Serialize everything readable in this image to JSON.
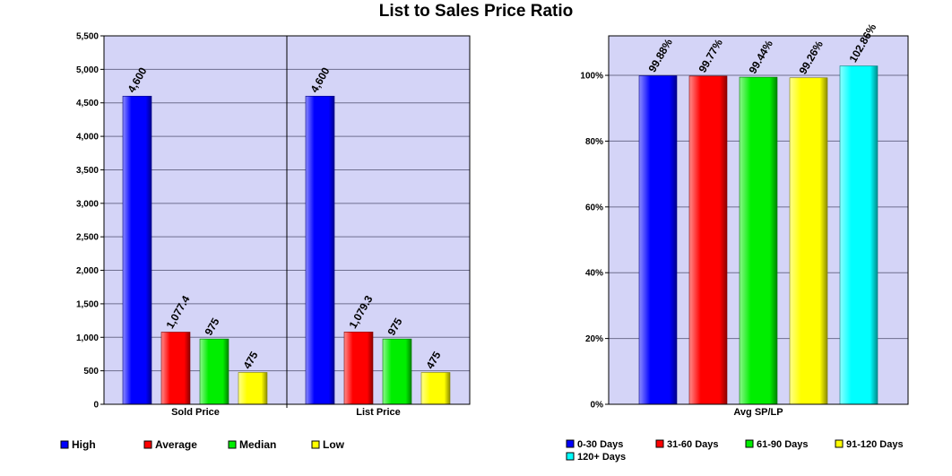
{
  "title": "List to Sales Price Ratio",
  "chart_data": [
    {
      "type": "bar",
      "categories": [
        "Sold Price",
        "List Price"
      ],
      "series": [
        {
          "name": "High",
          "values": [
            4600,
            4600
          ],
          "labels": [
            "4,600",
            "4,600"
          ],
          "color": "#0000ff"
        },
        {
          "name": "Average",
          "values": [
            1077.4,
            1079.3
          ],
          "labels": [
            "1,077.4",
            "1,079.3"
          ],
          "color": "#ff0000"
        },
        {
          "name": "Median",
          "values": [
            975,
            975
          ],
          "labels": [
            "975",
            "975"
          ],
          "color": "#00ee00"
        },
        {
          "name": "Low",
          "values": [
            475,
            475
          ],
          "labels": [
            "475",
            "475"
          ],
          "color": "#ffff00"
        }
      ],
      "ylim": [
        0,
        5500
      ],
      "yticks": [
        0,
        500,
        1000,
        1500,
        2000,
        2500,
        3000,
        3500,
        4000,
        4500,
        5000,
        5500
      ],
      "ytick_labels": [
        "0",
        "500",
        "1,000",
        "1,500",
        "2,000",
        "2,500",
        "3,000",
        "3,500",
        "4,000",
        "4,500",
        "5,000",
        "5,500"
      ],
      "grid": true,
      "legend_position": "bottom"
    },
    {
      "type": "bar",
      "categories": [
        "Avg SP/LP"
      ],
      "series": [
        {
          "name": "0-30 Days",
          "values": [
            99.88
          ],
          "labels": [
            "99.88%"
          ],
          "color": "#0000ff"
        },
        {
          "name": "31-60 Days",
          "values": [
            99.77
          ],
          "labels": [
            "99.77%"
          ],
          "color": "#ff0000"
        },
        {
          "name": "61-90 Days",
          "values": [
            99.44
          ],
          "labels": [
            "99.44%"
          ],
          "color": "#00ee00"
        },
        {
          "name": "91-120 Days",
          "values": [
            99.26
          ],
          "labels": [
            "99.26%"
          ],
          "color": "#ffff00"
        },
        {
          "name": "120+ Days",
          "values": [
            102.86
          ],
          "labels": [
            "102.86%"
          ],
          "color": "#00ffff"
        }
      ],
      "ylim": [
        0,
        112
      ],
      "yticks": [
        0,
        20,
        40,
        60,
        80,
        100
      ],
      "ytick_labels": [
        "0%",
        "20%",
        "40%",
        "60%",
        "80%",
        "100%"
      ],
      "grid": true,
      "legend_position": "bottom"
    }
  ]
}
